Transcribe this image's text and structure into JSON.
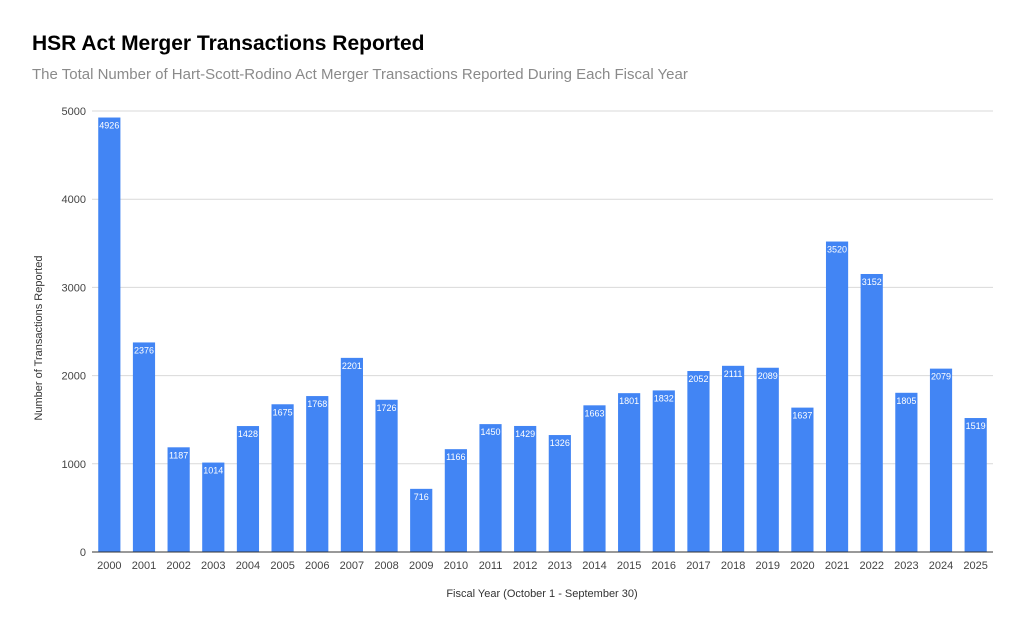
{
  "chart_data": {
    "type": "bar",
    "title": "HSR Act Merger Transactions Reported",
    "subtitle": "The Total Number of Hart-Scott-Rodino Act Merger Transactions Reported During Each Fiscal Year",
    "xlabel": "Fiscal Year (October 1 - September 30)",
    "ylabel": "Number of Transactions Reported",
    "ylim": [
      0,
      5000
    ],
    "yticks": [
      0,
      1000,
      2000,
      3000,
      4000,
      5000
    ],
    "grid": true,
    "bar_color": "#4285f4",
    "categories": [
      "2000",
      "2001",
      "2002",
      "2003",
      "2004",
      "2005",
      "2006",
      "2007",
      "2008",
      "2009",
      "2010",
      "2011",
      "2012",
      "2013",
      "2014",
      "2015",
      "2016",
      "2017",
      "2018",
      "2019",
      "2020",
      "2021",
      "2022",
      "2023",
      "2024",
      "2025"
    ],
    "values": [
      4926,
      2376,
      1187,
      1014,
      1428,
      1675,
      1768,
      2201,
      1726,
      716,
      1166,
      1450,
      1429,
      1326,
      1663,
      1801,
      1832,
      2052,
      2111,
      2089,
      1637,
      3520,
      3152,
      1805,
      2079,
      1519
    ]
  }
}
